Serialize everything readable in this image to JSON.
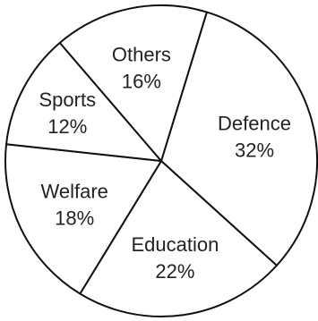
{
  "chart_data": {
    "type": "pie",
    "title": "",
    "slices": [
      {
        "label": "Defence",
        "value": 32,
        "value_label": "32%"
      },
      {
        "label": "Education",
        "value": 22,
        "value_label": "22%"
      },
      {
        "label": "Welfare",
        "value": 18,
        "value_label": "18%"
      },
      {
        "label": "Sports",
        "value": 12,
        "value_label": "12%"
      },
      {
        "label": "Others",
        "value": 16,
        "value_label": "16%"
      }
    ],
    "start_angle_deg": 17,
    "direction": "clockwise",
    "colors": {
      "fill": "#ffffff",
      "stroke": "#111111",
      "text": "#222222"
    }
  }
}
